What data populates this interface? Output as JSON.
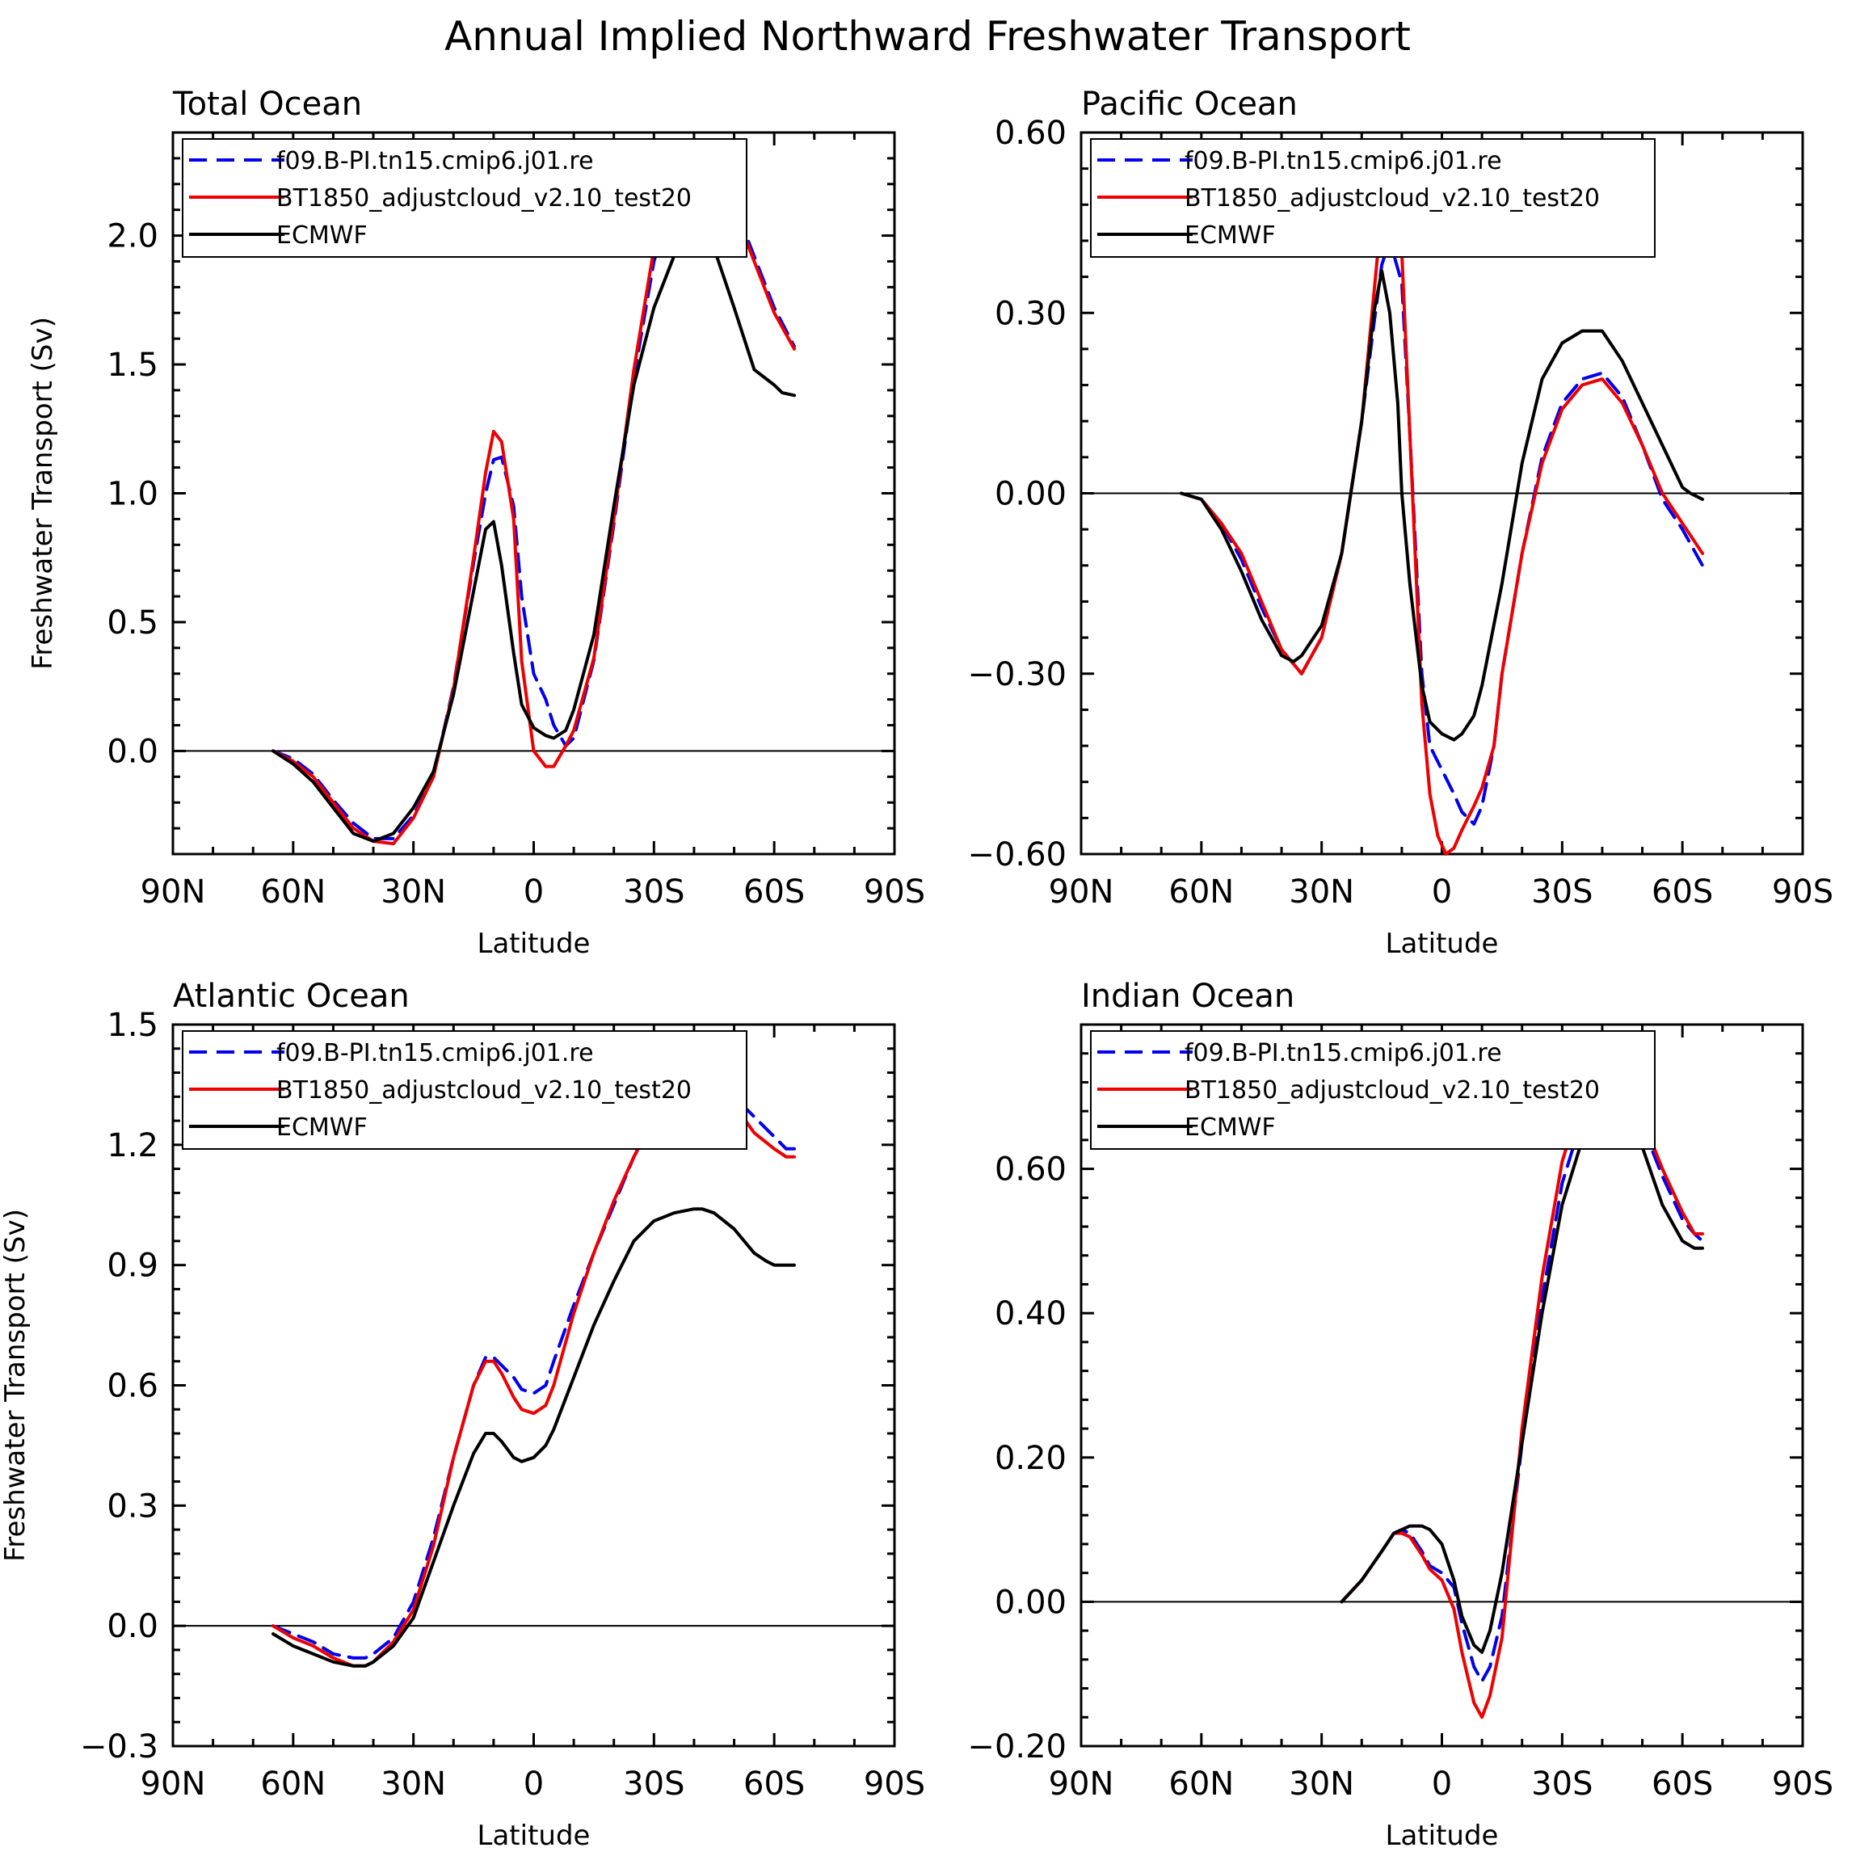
{
  "figure_title": "Annual Implied Northward Freshwater Transport",
  "legend_entries": [
    {
      "name": "f09.B-PI.tn15.cmip6.j01.re",
      "color": "#0000ee",
      "dash": "dashed"
    },
    {
      "name": "BT1850_adjustcloud_v2.10_test20",
      "color": "#ee0000",
      "dash": "solid"
    },
    {
      "name": "ECMWF",
      "color": "#000000",
      "dash": "solid"
    }
  ],
  "chart_data": [
    {
      "type": "line",
      "title": "Total Ocean",
      "xlabel": "Latitude",
      "ylabel": "Freshwater Transport (Sv)",
      "xlim": [
        90,
        -90
      ],
      "ylim": [
        -0.4,
        2.4
      ],
      "xticks": [
        90,
        60,
        30,
        0,
        -30,
        -60,
        -90
      ],
      "xtick_labels": [
        "90N",
        "60N",
        "30N",
        "0",
        "30S",
        "60S",
        "90S"
      ],
      "yticks": [
        0.0,
        0.5,
        1.0,
        1.5,
        2.0
      ],
      "ytick_labels": [
        "0.0",
        "0.5",
        "1.0",
        "1.5",
        "2.0"
      ],
      "series": [
        {
          "name": "f09.B-PI.tn15.cmip6.j01.re",
          "x": [
            65,
            60,
            55,
            50,
            45,
            40,
            35,
            30,
            25,
            20,
            15,
            12,
            10,
            8,
            5,
            3,
            0,
            -3,
            -5,
            -8,
            -10,
            -15,
            -20,
            -25,
            -30,
            -35,
            -40,
            -42,
            -45,
            -50,
            -55,
            -60,
            -65
          ],
          "y": [
            0,
            -0.03,
            -0.09,
            -0.19,
            -0.28,
            -0.34,
            -0.34,
            -0.25,
            -0.1,
            0.25,
            0.73,
            1.0,
            1.13,
            1.14,
            0.95,
            0.6,
            0.3,
            0.2,
            0.1,
            0.02,
            0.05,
            0.35,
            0.88,
            1.45,
            1.9,
            2.15,
            2.27,
            2.29,
            2.28,
            2.12,
            1.92,
            1.72,
            1.57
          ]
        },
        {
          "name": "BT1850_adjustcloud_v2.10_test20",
          "x": [
            65,
            60,
            55,
            50,
            45,
            40,
            35,
            30,
            25,
            20,
            15,
            12,
            10,
            8,
            5,
            3,
            0,
            -3,
            -5,
            -8,
            -10,
            -15,
            -20,
            -25,
            -30,
            -35,
            -40,
            -42,
            -45,
            -50,
            -55,
            -60,
            -65
          ],
          "y": [
            0,
            -0.04,
            -0.1,
            -0.2,
            -0.3,
            -0.35,
            -0.36,
            -0.26,
            -0.1,
            0.24,
            0.75,
            1.08,
            1.24,
            1.2,
            0.9,
            0.35,
            0.0,
            -0.06,
            -0.06,
            0.02,
            0.08,
            0.36,
            0.9,
            1.48,
            1.95,
            2.18,
            2.27,
            2.28,
            2.26,
            2.1,
            1.9,
            1.7,
            1.56
          ]
        },
        {
          "name": "ECMWF",
          "x": [
            65,
            60,
            55,
            50,
            45,
            40,
            35,
            30,
            25,
            20,
            15,
            12,
            10,
            8,
            5,
            3,
            0,
            -3,
            -5,
            -8,
            -10,
            -15,
            -20,
            -25,
            -30,
            -35,
            -40,
            -42,
            -45,
            -50,
            -55,
            -60,
            -62,
            -65
          ],
          "y": [
            0,
            -0.05,
            -0.12,
            -0.22,
            -0.32,
            -0.35,
            -0.32,
            -0.22,
            -0.08,
            0.22,
            0.62,
            0.86,
            0.89,
            0.72,
            0.38,
            0.18,
            0.09,
            0.06,
            0.05,
            0.08,
            0.16,
            0.45,
            0.95,
            1.42,
            1.72,
            1.92,
            2.0,
            2.01,
            1.95,
            1.72,
            1.48,
            1.42,
            1.39,
            1.38
          ]
        }
      ]
    },
    {
      "type": "line",
      "title": "Pacific Ocean",
      "xlabel": "Latitude",
      "ylabel": "",
      "xlim": [
        90,
        -90
      ],
      "ylim": [
        -0.6,
        0.6
      ],
      "xticks": [
        90,
        60,
        30,
        0,
        -30,
        -60,
        -90
      ],
      "xtick_labels": [
        "90N",
        "60N",
        "30N",
        "0",
        "30S",
        "60S",
        "90S"
      ],
      "yticks": [
        -0.6,
        -0.3,
        0.0,
        0.3,
        0.6
      ],
      "ytick_labels": [
        "−0.60",
        "−0.30",
        "0.00",
        "0.30",
        "0.60"
      ],
      "series": [
        {
          "name": "f09.B-PI.tn15.cmip6.j01.re",
          "x": [
            65,
            60,
            55,
            50,
            45,
            40,
            35,
            30,
            25,
            20,
            17,
            15,
            13,
            10,
            8,
            5,
            3,
            0,
            -3,
            -5,
            -8,
            -10,
            -13,
            -15,
            -20,
            -25,
            -30,
            -35,
            -40,
            -45,
            -50,
            -55,
            -60,
            -65
          ],
          "y": [
            0,
            -0.01,
            -0.05,
            -0.11,
            -0.19,
            -0.26,
            -0.3,
            -0.24,
            -0.1,
            0.12,
            0.28,
            0.38,
            0.42,
            0.35,
            0.1,
            -0.3,
            -0.42,
            -0.46,
            -0.5,
            -0.53,
            -0.55,
            -0.52,
            -0.42,
            -0.3,
            -0.1,
            0.06,
            0.15,
            0.19,
            0.2,
            0.16,
            0.08,
            -0.01,
            -0.06,
            -0.12
          ]
        },
        {
          "name": "BT1850_adjustcloud_v2.10_test20",
          "x": [
            65,
            60,
            55,
            50,
            45,
            40,
            35,
            30,
            25,
            20,
            17,
            15,
            13,
            11,
            10,
            8,
            5,
            3,
            1,
            -1,
            -3,
            -5,
            -8,
            -10,
            -13,
            -15,
            -20,
            -25,
            -30,
            -35,
            -40,
            -45,
            -50,
            -55,
            -60,
            -65
          ],
          "y": [
            0,
            -0.01,
            -0.05,
            -0.1,
            -0.18,
            -0.26,
            -0.3,
            -0.24,
            -0.1,
            0.12,
            0.33,
            0.47,
            0.52,
            0.5,
            0.4,
            0.1,
            -0.35,
            -0.5,
            -0.57,
            -0.6,
            -0.59,
            -0.56,
            -0.52,
            -0.49,
            -0.42,
            -0.3,
            -0.1,
            0.05,
            0.14,
            0.18,
            0.19,
            0.15,
            0.08,
            0.0,
            -0.05,
            -0.1
          ]
        },
        {
          "name": "ECMWF",
          "x": [
            65,
            60,
            55,
            50,
            45,
            40,
            37,
            35,
            30,
            25,
            20,
            17,
            15,
            13,
            11,
            10,
            8,
            5,
            3,
            0,
            -3,
            -5,
            -8,
            -10,
            -15,
            -20,
            -25,
            -30,
            -35,
            -40,
            -45,
            -50,
            -55,
            -60,
            -62,
            -65
          ],
          "y": [
            0,
            -0.01,
            -0.06,
            -0.13,
            -0.21,
            -0.27,
            -0.28,
            -0.27,
            -0.22,
            -0.1,
            0.12,
            0.3,
            0.37,
            0.3,
            0.15,
            0.0,
            -0.15,
            -0.32,
            -0.38,
            -0.4,
            -0.41,
            -0.4,
            -0.37,
            -0.32,
            -0.15,
            0.05,
            0.19,
            0.25,
            0.27,
            0.27,
            0.22,
            0.15,
            0.08,
            0.01,
            0.0,
            -0.01
          ]
        }
      ]
    },
    {
      "type": "line",
      "title": "Atlantic Ocean",
      "xlabel": "Latitude",
      "ylabel": "Freshwater Transport (Sv)",
      "xlim": [
        90,
        -90
      ],
      "ylim": [
        -0.3,
        1.5
      ],
      "xticks": [
        90,
        60,
        30,
        0,
        -30,
        -60,
        -90
      ],
      "xtick_labels": [
        "90N",
        "60N",
        "30N",
        "0",
        "30S",
        "60S",
        "90S"
      ],
      "yticks": [
        -0.3,
        0.0,
        0.3,
        0.6,
        0.9,
        1.2,
        1.5
      ],
      "ytick_labels": [
        "−0.3",
        "0.0",
        "0.3",
        "0.6",
        "0.9",
        "1.2",
        "1.5"
      ],
      "series": [
        {
          "name": "f09.B-PI.tn15.cmip6.j01.re",
          "x": [
            65,
            60,
            55,
            50,
            45,
            42,
            40,
            35,
            30,
            25,
            20,
            15,
            12,
            10,
            8,
            5,
            3,
            0,
            -3,
            -5,
            -10,
            -15,
            -20,
            -25,
            -30,
            -35,
            -40,
            -45,
            -50,
            -55,
            -60,
            -63,
            -65
          ],
          "y": [
            0,
            -0.02,
            -0.04,
            -0.07,
            -0.08,
            -0.08,
            -0.07,
            -0.03,
            0.06,
            0.22,
            0.42,
            0.6,
            0.67,
            0.67,
            0.65,
            0.62,
            0.59,
            0.58,
            0.6,
            0.66,
            0.8,
            0.93,
            1.05,
            1.17,
            1.26,
            1.32,
            1.36,
            1.36,
            1.32,
            1.27,
            1.22,
            1.19,
            1.19
          ]
        },
        {
          "name": "BT1850_adjustcloud_v2.10_test20",
          "x": [
            65,
            60,
            55,
            50,
            45,
            42,
            40,
            35,
            30,
            25,
            20,
            15,
            12,
            10,
            8,
            5,
            3,
            0,
            -3,
            -5,
            -10,
            -15,
            -20,
            -25,
            -30,
            -35,
            -40,
            -45,
            -50,
            -55,
            -60,
            -63,
            -65
          ],
          "y": [
            0,
            -0.03,
            -0.05,
            -0.08,
            -0.1,
            -0.1,
            -0.09,
            -0.04,
            0.04,
            0.2,
            0.42,
            0.6,
            0.66,
            0.66,
            0.63,
            0.57,
            0.54,
            0.53,
            0.55,
            0.6,
            0.78,
            0.93,
            1.06,
            1.17,
            1.27,
            1.33,
            1.36,
            1.35,
            1.3,
            1.23,
            1.19,
            1.17,
            1.17
          ]
        },
        {
          "name": "ECMWF",
          "x": [
            65,
            60,
            55,
            50,
            45,
            42,
            40,
            35,
            30,
            25,
            20,
            15,
            12,
            10,
            8,
            5,
            3,
            0,
            -3,
            -5,
            -10,
            -15,
            -20,
            -25,
            -30,
            -35,
            -40,
            -42,
            -45,
            -50,
            -55,
            -58,
            -60,
            -65
          ],
          "y": [
            -0.02,
            -0.05,
            -0.07,
            -0.09,
            -0.1,
            -0.1,
            -0.09,
            -0.05,
            0.02,
            0.16,
            0.3,
            0.43,
            0.48,
            0.48,
            0.46,
            0.42,
            0.41,
            0.42,
            0.45,
            0.49,
            0.62,
            0.75,
            0.86,
            0.96,
            1.01,
            1.03,
            1.04,
            1.04,
            1.03,
            0.99,
            0.93,
            0.91,
            0.9,
            0.9
          ]
        }
      ]
    },
    {
      "type": "line",
      "title": "Indian Ocean",
      "xlabel": "Latitude",
      "ylabel": "",
      "xlim": [
        90,
        -90
      ],
      "ylim": [
        -0.2,
        0.8
      ],
      "xticks": [
        90,
        60,
        30,
        0,
        -30,
        -60,
        -90
      ],
      "xtick_labels": [
        "90N",
        "60N",
        "30N",
        "0",
        "30S",
        "60S",
        "90S"
      ],
      "yticks": [
        -0.2,
        0.0,
        0.2,
        0.4,
        0.6
      ],
      "ytick_labels": [
        "−0.20",
        "0.00",
        "0.20",
        "0.40",
        "0.60"
      ],
      "series": [
        {
          "name": "f09.B-PI.tn15.cmip6.j01.re",
          "x": [
            25,
            20,
            15,
            12,
            10,
            8,
            5,
            3,
            0,
            -3,
            -5,
            -8,
            -10,
            -12,
            -15,
            -20,
            -25,
            -30,
            -35,
            -40,
            -42,
            -45,
            -50,
            -55,
            -60,
            -63,
            -65
          ],
          "y": [
            0,
            0.03,
            0.07,
            0.095,
            0.1,
            0.095,
            0.07,
            0.05,
            0.04,
            0.02,
            -0.03,
            -0.09,
            -0.11,
            -0.09,
            -0.02,
            0.22,
            0.42,
            0.58,
            0.67,
            0.72,
            0.73,
            0.72,
            0.66,
            0.59,
            0.53,
            0.51,
            0.5
          ]
        },
        {
          "name": "BT1850_adjustcloud_v2.10_test20",
          "x": [
            25,
            20,
            15,
            12,
            10,
            8,
            5,
            3,
            0,
            -3,
            -5,
            -8,
            -10,
            -12,
            -15,
            -20,
            -25,
            -30,
            -35,
            -40,
            -42,
            -45,
            -50,
            -55,
            -60,
            -63,
            -65
          ],
          "y": [
            0,
            0.03,
            0.07,
            0.095,
            0.095,
            0.09,
            0.065,
            0.045,
            0.03,
            -0.01,
            -0.07,
            -0.14,
            -0.16,
            -0.13,
            -0.05,
            0.24,
            0.45,
            0.61,
            0.7,
            0.74,
            0.745,
            0.73,
            0.67,
            0.6,
            0.54,
            0.51,
            0.51
          ]
        },
        {
          "name": "ECMWF",
          "x": [
            25,
            20,
            15,
            12,
            10,
            8,
            5,
            3,
            0,
            -3,
            -5,
            -8,
            -10,
            -12,
            -15,
            -20,
            -25,
            -30,
            -35,
            -40,
            -42,
            -45,
            -50,
            -55,
            -60,
            -63,
            -65
          ],
          "y": [
            0,
            0.03,
            0.07,
            0.095,
            0.1,
            0.105,
            0.105,
            0.1,
            0.08,
            0.03,
            -0.02,
            -0.06,
            -0.07,
            -0.04,
            0.04,
            0.22,
            0.4,
            0.55,
            0.64,
            0.69,
            0.7,
            0.69,
            0.63,
            0.55,
            0.5,
            0.49,
            0.49
          ]
        }
      ]
    }
  ]
}
